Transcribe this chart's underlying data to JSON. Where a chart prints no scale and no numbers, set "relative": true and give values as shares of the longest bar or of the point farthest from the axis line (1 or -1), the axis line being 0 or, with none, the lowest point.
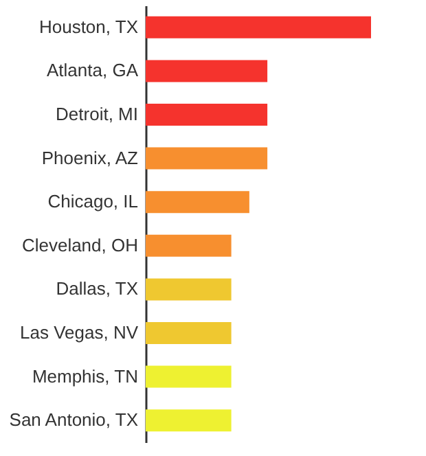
{
  "chart_data": {
    "type": "bar",
    "orientation": "horizontal",
    "relative": true,
    "categories": [
      "Houston, TX",
      "Atlanta, GA",
      "Detroit, MI",
      "Phoenix, AZ",
      "Chicago, IL",
      "Cleveland, OH",
      "Dallas, TX",
      "Las Vegas, NV",
      "Memphis, TN",
      "San Antonio, TX"
    ],
    "values": [
      1,
      0.54,
      0.54,
      0.54,
      0.46,
      0.38,
      0.38,
      0.38,
      0.38,
      0.38
    ],
    "colors": [
      "#f5332d",
      "#f5332d",
      "#f5332d",
      "#f78f2f",
      "#f78f2f",
      "#f78f2f",
      "#efc830",
      "#efc830",
      "#eef131",
      "#eef131"
    ],
    "grid": false,
    "legend": false
  }
}
